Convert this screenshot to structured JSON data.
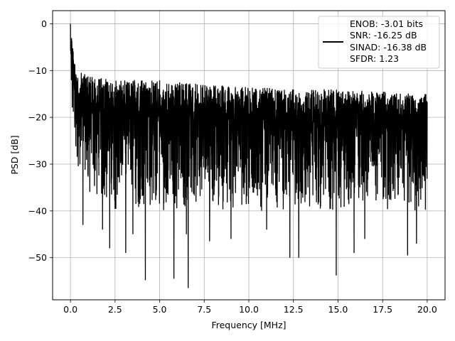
{
  "chart_data": {
    "type": "line",
    "title": "",
    "xlabel": "Frequency [MHz]",
    "ylabel": "PSD [dB]",
    "xlim": [
      -1.0,
      21.0
    ],
    "ylim": [
      -59.0,
      2.8
    ],
    "xticks": [
      0.0,
      2.5,
      5.0,
      7.5,
      10.0,
      12.5,
      15.0,
      17.5,
      20.0
    ],
    "xtick_labels": [
      "0.0",
      "2.5",
      "5.0",
      "7.5",
      "10.0",
      "12.5",
      "15.0",
      "17.5",
      "20.0"
    ],
    "yticks": [
      0,
      -10,
      -20,
      -30,
      -40,
      -50
    ],
    "ytick_labels": [
      "0",
      "−10",
      "−20",
      "−30",
      "−40",
      "−50"
    ],
    "grid": true,
    "legend_position": "upper-right",
    "line_color": "#000000",
    "legend_lines": [
      "ENOB: -3.01 bits",
      "SNR: -16.25 dB",
      "SINAD: -16.38 dB",
      "SFDR: 1.23"
    ],
    "series": [
      {
        "x_start": 0.0,
        "x_end": 20.0,
        "envelope_note": "",
        "peak": {
          "x": 0.0,
          "y": 0.0
        },
        "envelope_max": [
          [
            0.0,
            0.0
          ],
          [
            0.1,
            -3
          ],
          [
            0.3,
            -10
          ],
          [
            1.0,
            -11
          ],
          [
            2.5,
            -12
          ],
          [
            5.0,
            -12
          ],
          [
            7.5,
            -13
          ],
          [
            10.0,
            -13.5
          ],
          [
            12.5,
            -14
          ],
          [
            15.0,
            -14
          ],
          [
            17.5,
            -14.5
          ],
          [
            20.0,
            -15
          ]
        ],
        "envelope_min": [
          [
            0.0,
            -18
          ],
          [
            0.5,
            -33
          ],
          [
            1.0,
            -38
          ],
          [
            2.5,
            -40
          ],
          [
            5.0,
            -40
          ],
          [
            10.0,
            -40
          ],
          [
            15.0,
            -40
          ],
          [
            20.0,
            -40
          ]
        ],
        "deep_dips": [
          [
            0.7,
            -43
          ],
          [
            1.8,
            -44
          ],
          [
            2.2,
            -48
          ],
          [
            3.1,
            -49
          ],
          [
            3.5,
            -45
          ],
          [
            4.2,
            -54.8
          ],
          [
            5.8,
            -54.5
          ],
          [
            6.6,
            -56.5
          ],
          [
            6.5,
            -45
          ],
          [
            7.8,
            -46.5
          ],
          [
            9.0,
            -46
          ],
          [
            11.0,
            -44
          ],
          [
            12.3,
            -50
          ],
          [
            12.8,
            -50
          ],
          [
            14.9,
            -53.8
          ],
          [
            15.9,
            -49
          ],
          [
            16.5,
            -46
          ],
          [
            18.9,
            -49.5
          ],
          [
            19.4,
            -47
          ]
        ]
      }
    ]
  }
}
